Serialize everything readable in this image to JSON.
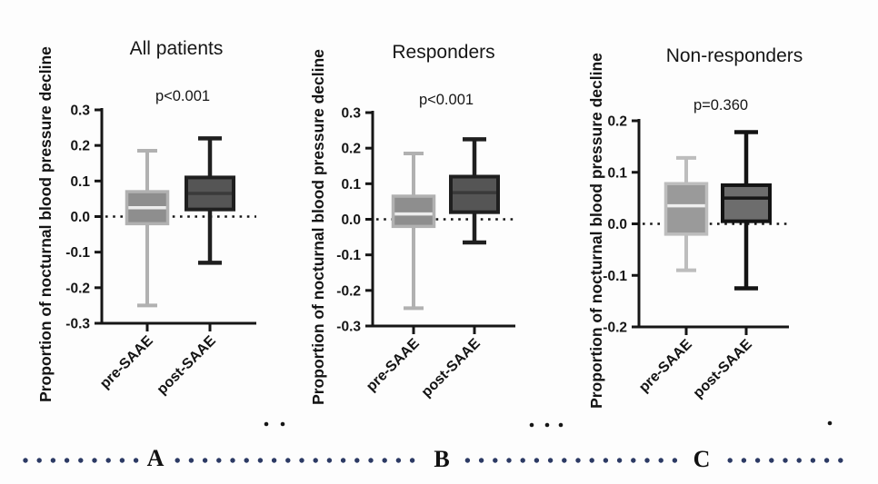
{
  "chart_data": [
    {
      "type": "boxplot",
      "panel": "A",
      "title": "All patients",
      "p_value": "p<0.001",
      "ylabel": "Proportion of nocturnal blood pressure decline",
      "ylim": [
        -0.3,
        0.3
      ],
      "yticks": [
        "0.3",
        "0.2",
        "0.1",
        "0.0",
        "-0.1",
        "-0.2",
        "-0.3"
      ],
      "categories": [
        "pre-SAAE",
        "post-SAAE"
      ],
      "zero_reference_line": true,
      "series": [
        {
          "name": "pre-SAAE",
          "whisker_low": -0.25,
          "q1": -0.02,
          "median": 0.025,
          "q3": 0.07,
          "whisker_high": 0.185,
          "stroke": "#b1b1b1",
          "fill": "#8e8e8e",
          "median_color": "#ececec"
        },
        {
          "name": "post-SAAE",
          "whisker_low": -0.13,
          "q1": 0.02,
          "median": 0.065,
          "q3": 0.11,
          "whisker_high": 0.22,
          "stroke": "#1f1f1f",
          "fill": "#555555",
          "median_color": "#3a3a3a"
        }
      ]
    },
    {
      "type": "boxplot",
      "panel": "B",
      "title": "Responders",
      "p_value": "p<0.001",
      "ylabel": "Proportion of nocturnal blood pressure decline",
      "ylim": [
        -0.3,
        0.3
      ],
      "yticks": [
        "0.3",
        "0.2",
        "0.1",
        "0.0",
        "-0.1",
        "-0.2",
        "-0.3"
      ],
      "categories": [
        "pre-SAAE",
        "post-SAAE"
      ],
      "zero_reference_line": true,
      "series": [
        {
          "name": "pre-SAAE",
          "whisker_low": -0.25,
          "q1": -0.02,
          "median": 0.015,
          "q3": 0.065,
          "whisker_high": 0.185,
          "stroke": "#b1b1b1",
          "fill": "#8e8e8e",
          "median_color": "#ececec"
        },
        {
          "name": "post-SAAE",
          "whisker_low": -0.065,
          "q1": 0.02,
          "median": 0.075,
          "q3": 0.12,
          "whisker_high": 0.225,
          "stroke": "#1f1f1f",
          "fill": "#555555",
          "median_color": "#3a3a3a"
        }
      ]
    },
    {
      "type": "boxplot",
      "panel": "C",
      "title": "Non-responders",
      "p_value": "p=0.360",
      "ylabel": "Proportion of nocturnal blood pressure decline",
      "ylim": [
        -0.2,
        0.2
      ],
      "yticks": [
        "0.2",
        "0.1",
        "0.0",
        "-0.1",
        "-0.2"
      ],
      "categories": [
        "pre-SAAE",
        "post-SAAE"
      ],
      "zero_reference_line": true,
      "series": [
        {
          "name": "pre-SAAE",
          "whisker_low": -0.09,
          "q1": -0.02,
          "median": 0.035,
          "q3": 0.078,
          "whisker_high": 0.128,
          "stroke": "#bdbdbd",
          "fill": "#9a9a9a",
          "median_color": "#efefef"
        },
        {
          "name": "post-SAAE",
          "whisker_low": -0.125,
          "q1": 0.005,
          "median": 0.05,
          "q3": 0.075,
          "whisker_high": 0.178,
          "stroke": "#141414",
          "fill": "#6d6d6d",
          "median_color": "#161616"
        }
      ]
    }
  ],
  "footer": {
    "panel_labels": [
      "A",
      "B",
      "C"
    ],
    "dot_color": "#2c3a64"
  }
}
